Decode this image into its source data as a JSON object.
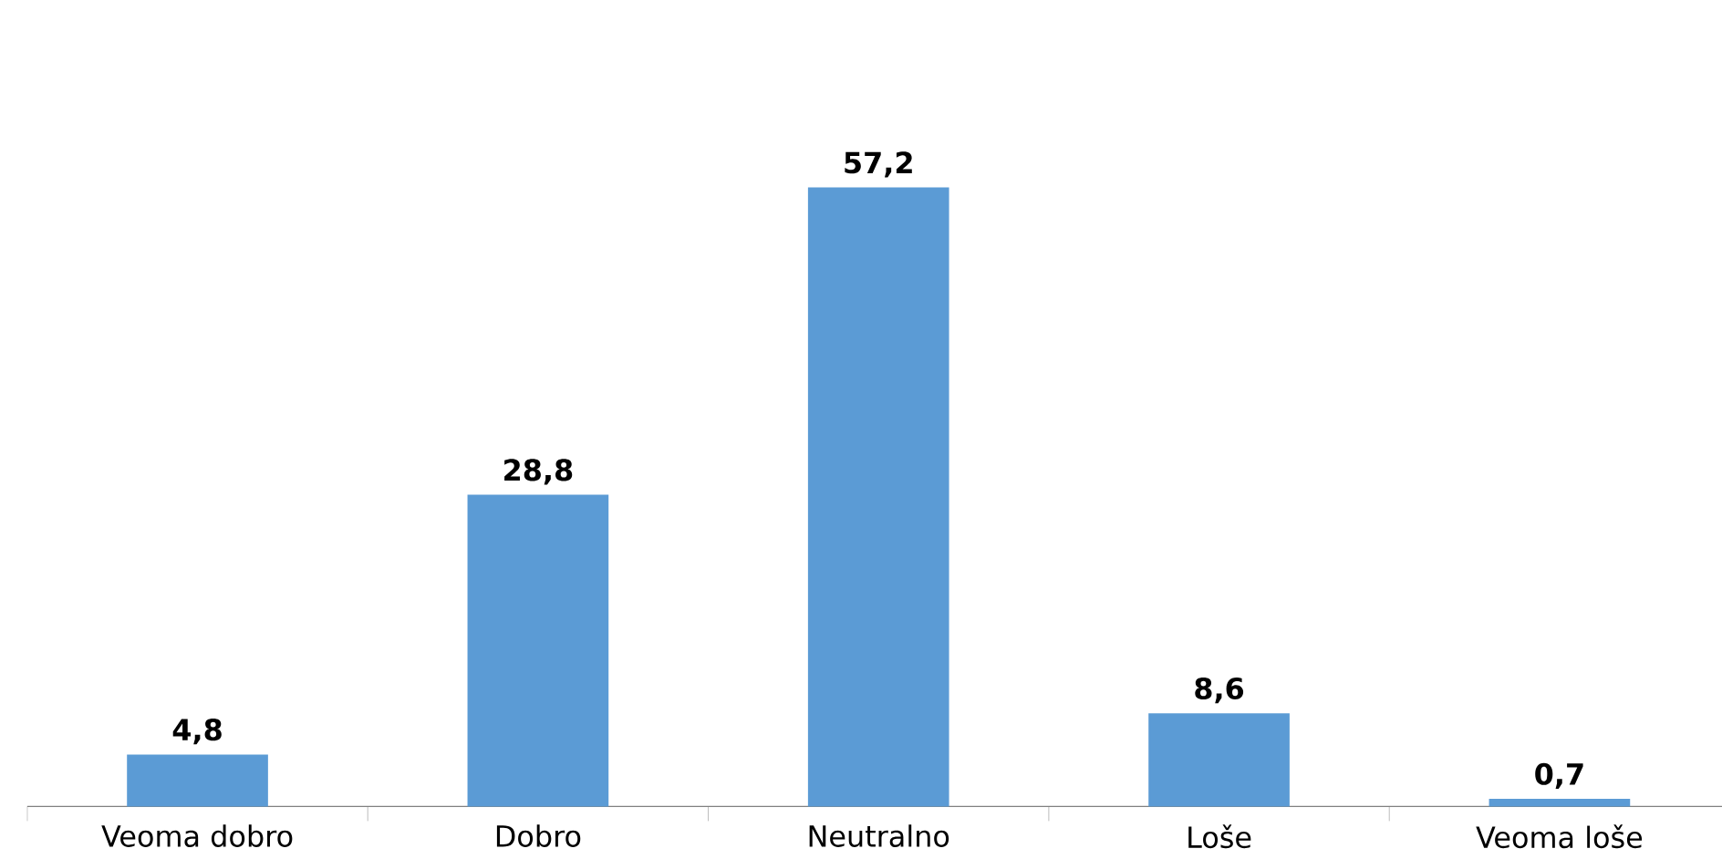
{
  "chart_data": {
    "type": "bar",
    "categories": [
      "Veoma dobro",
      "Dobro",
      "Neutralno",
      "Loše",
      "Veoma loše"
    ],
    "values": [
      4.8,
      28.8,
      57.2,
      8.6,
      0.7
    ],
    "value_labels": [
      "4,8",
      "28,8",
      "57,2",
      "8,6",
      "0,7"
    ],
    "color": "#5b9bd5"
  }
}
